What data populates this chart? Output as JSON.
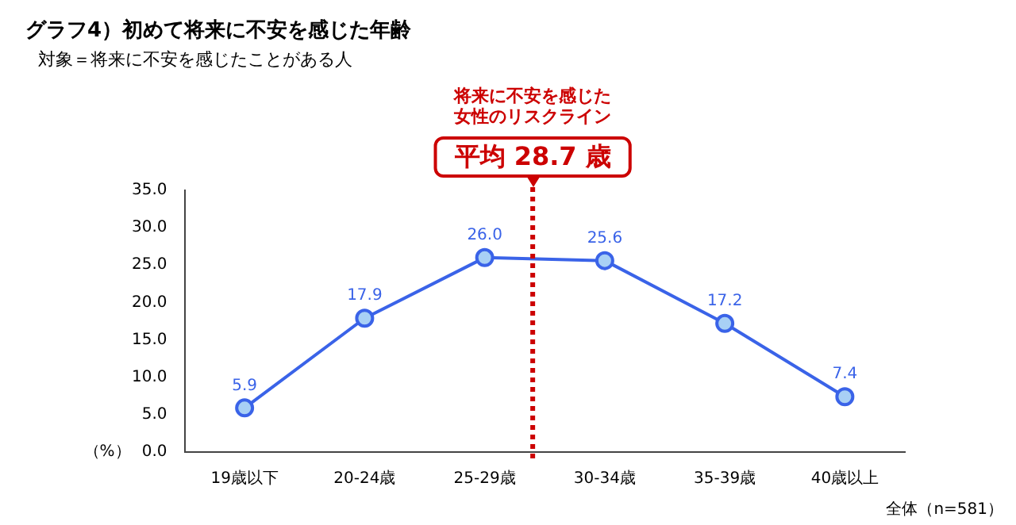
{
  "chart_data": {
    "type": "line",
    "title": "グラフ4）初めて将来に不安を感じた年齢",
    "subtitle": "対象＝将来に不安を感じたことがある人",
    "ylabel": "（%）",
    "categories": [
      "19歳以下",
      "20-24歳",
      "25-29歳",
      "30-34歳",
      "35-39歳",
      "40歳以上"
    ],
    "series": [
      {
        "color": "#3a63e8",
        "values": [
          5.9,
          17.9,
          26.0,
          25.6,
          17.2,
          7.4
        ],
        "value_labels": [
          "5.9",
          "17.9",
          "26.0",
          "25.6",
          "17.2",
          "7.4"
        ]
      }
    ],
    "ylim": [
      0,
      35
    ],
    "yticks": [
      {
        "value": 0,
        "label": "0.0"
      },
      {
        "value": 5,
        "label": "5.0"
      },
      {
        "value": 10,
        "label": "10.0"
      },
      {
        "value": 15,
        "label": "15.0"
      },
      {
        "value": 20,
        "label": "20.0"
      },
      {
        "value": 25,
        "label": "25.0"
      },
      {
        "value": 30,
        "label": "30.0"
      },
      {
        "value": 35,
        "label": "35.0"
      }
    ],
    "ref_lines": [
      {
        "axis": "x",
        "value": "25-29歳",
        "label": "平均 28.7 歳",
        "color": "#cc0000",
        "line_style": "dotted"
      }
    ],
    "annotations": [
      "将来に不安を感じた女性のリスクライン",
      "全体（n=581）"
    ],
    "marker": "circle",
    "line_style": "solid",
    "grid": false,
    "legend": false
  }
}
